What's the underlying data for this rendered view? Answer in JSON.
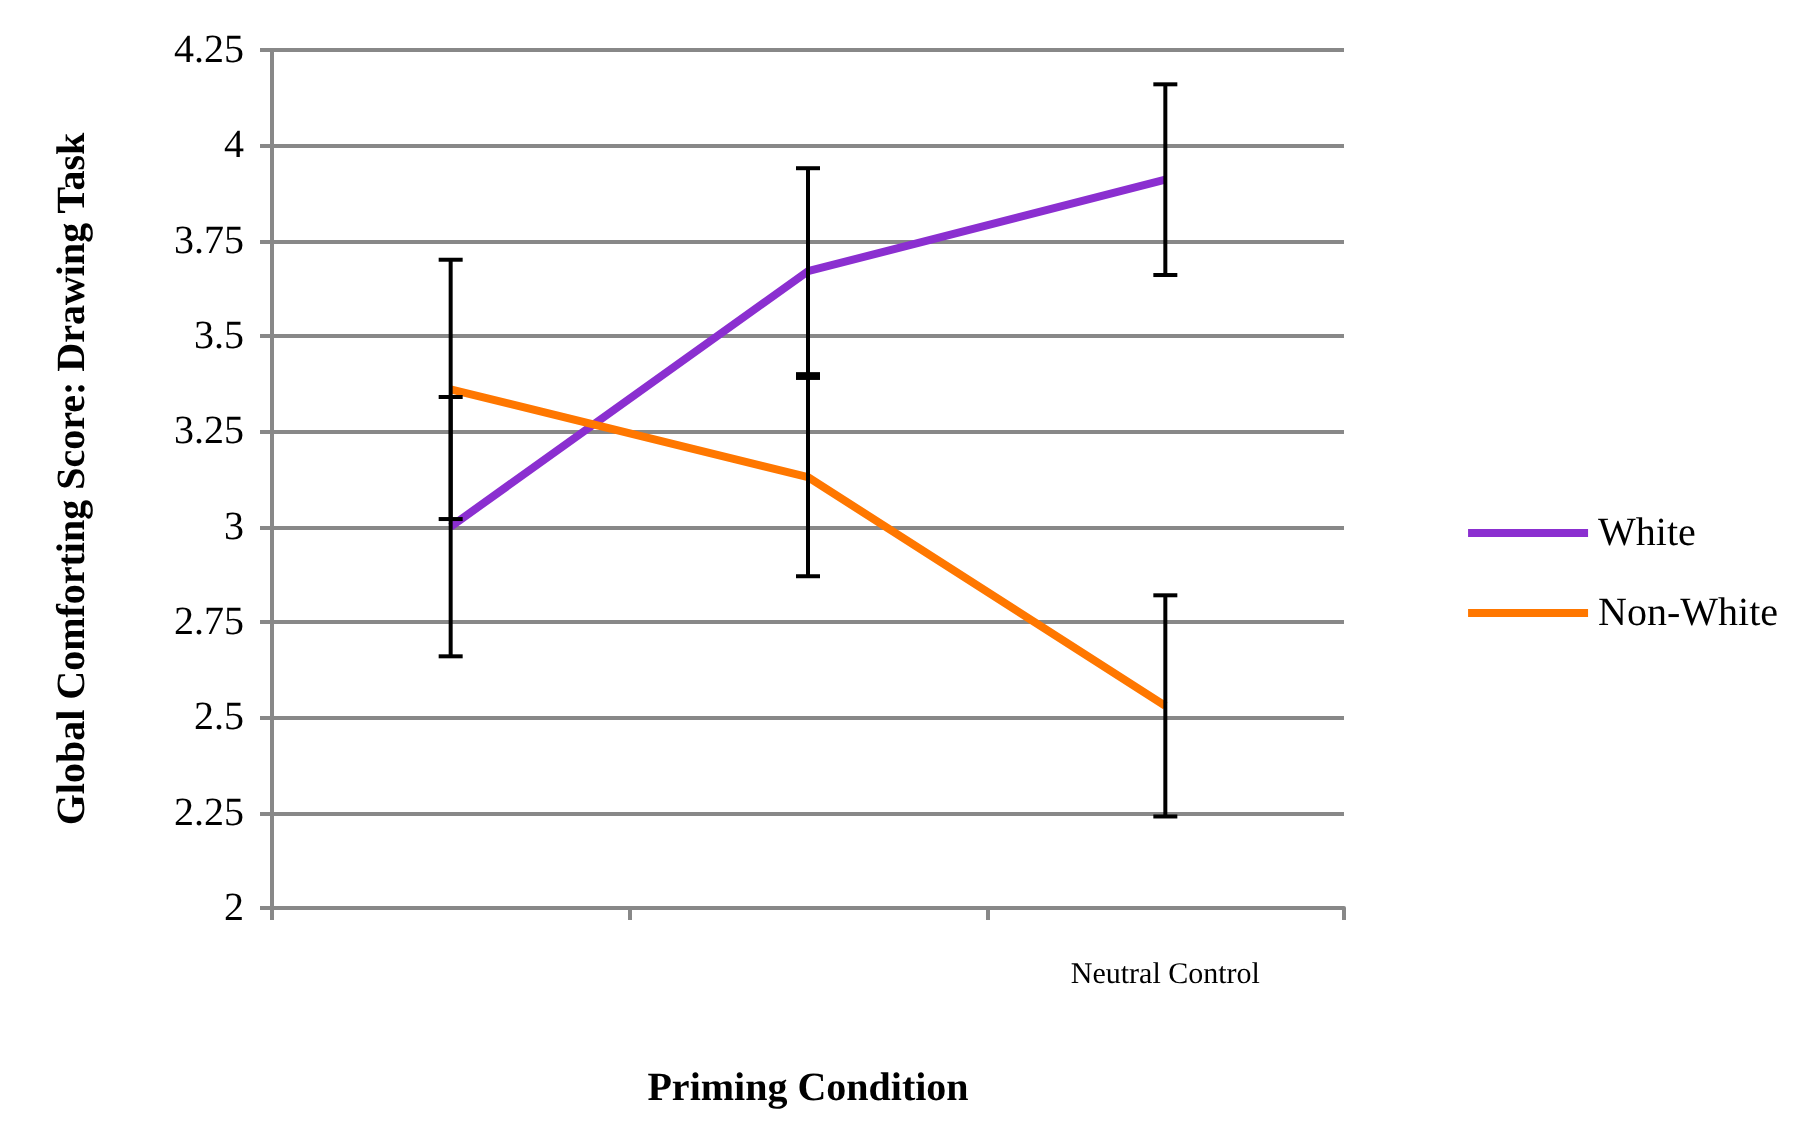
{
  "chart_data": {
    "type": "line",
    "xlabel": "Priming Condition",
    "ylabel": "Global Comforting Score: Drawing Task",
    "categories": [
      null,
      null,
      "Neutral Control"
    ],
    "series": [
      {
        "name": "White",
        "color": "#8b2fd0",
        "values": [
          3.0,
          3.67,
          3.91
        ],
        "errors": [
          [
            2.66,
            3.34
          ],
          [
            3.4,
            3.94
          ],
          [
            3.66,
            4.16
          ]
        ]
      },
      {
        "name": "Non-White",
        "color": "#ff7700",
        "values": [
          3.36,
          3.13,
          2.53
        ],
        "errors": [
          [
            3.02,
            3.7
          ],
          [
            2.87,
            3.39
          ],
          [
            2.24,
            2.82
          ]
        ]
      }
    ],
    "ylim": [
      2,
      4.25
    ],
    "yticks": [
      2,
      2.25,
      2.5,
      2.75,
      3,
      3.25,
      3.5,
      3.75,
      4,
      4.25
    ],
    "grid": "y",
    "legend": "right",
    "marker": "none",
    "line_style": "solid"
  }
}
